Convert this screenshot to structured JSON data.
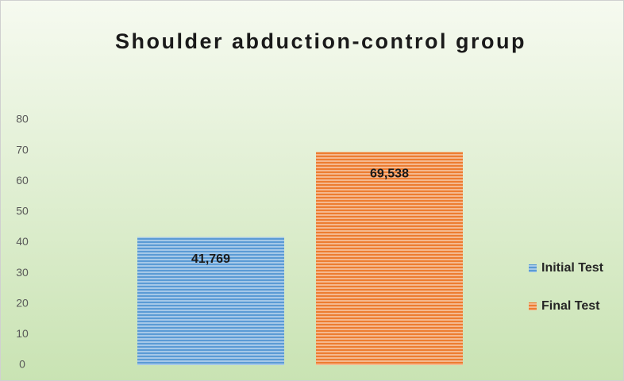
{
  "chart_data": {
    "type": "bar",
    "title": "Shoulder abduction-control group",
    "categories": [
      null
    ],
    "series": [
      {
        "name": "Initial Test",
        "color": "#5b9bd5",
        "values": [
          41.769
        ],
        "value_labels": [
          "41,769"
        ]
      },
      {
        "name": "Final Test",
        "color": "#ed7d31",
        "values": [
          69.538
        ],
        "value_labels": [
          "69,538"
        ]
      }
    ],
    "ylim": [
      0,
      80
    ],
    "yticks": [
      0,
      10,
      20,
      30,
      40,
      50,
      60,
      70,
      80
    ],
    "grid": false,
    "legend": "right"
  }
}
